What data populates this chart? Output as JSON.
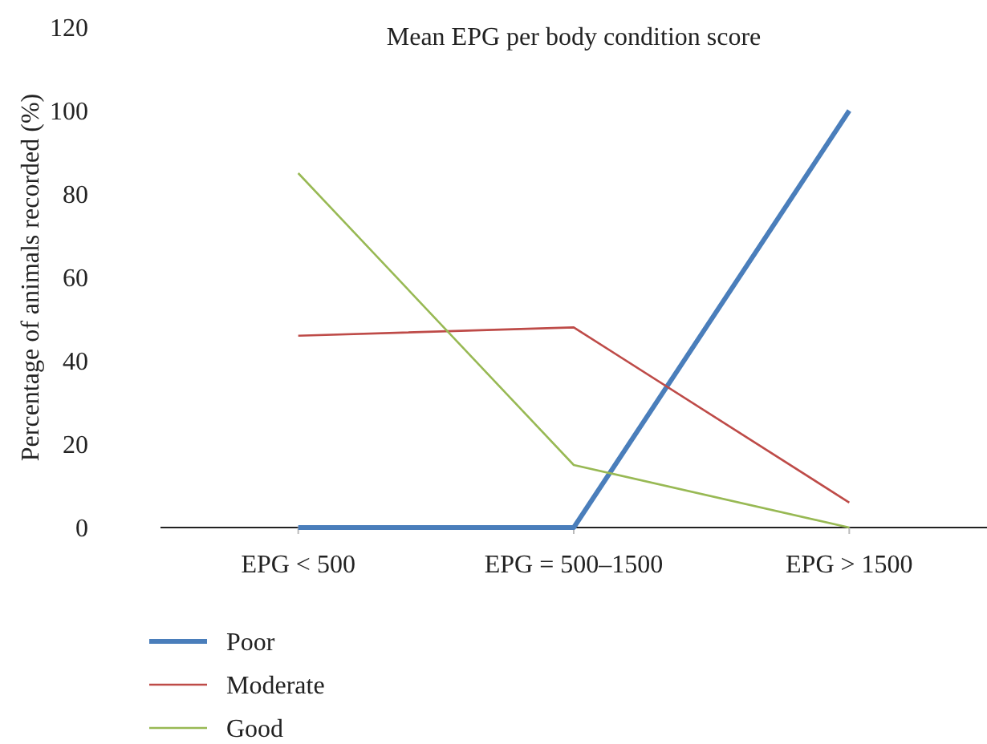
{
  "chart_data": {
    "type": "line",
    "title": "Mean EPG per body condition score",
    "ylabel": "Percentage of animals recorded (%)",
    "categories": [
      "EPG < 500",
      "EPG = 500–1500",
      "EPG > 1500"
    ],
    "series": [
      {
        "name": "Poor",
        "color": "#4a7ebb",
        "values": [
          0,
          0,
          100
        ]
      },
      {
        "name": "Moderate",
        "color": "#be4b48",
        "values": [
          46,
          48,
          6
        ]
      },
      {
        "name": "Good",
        "color": "#98b954",
        "values": [
          85,
          15,
          0
        ]
      }
    ],
    "ylim": [
      0,
      120
    ],
    "yticks": [
      0,
      20,
      40,
      60,
      80,
      100,
      120
    ],
    "grid": false,
    "legend": "bottom left",
    "marker": "none",
    "line_style": "solid"
  }
}
